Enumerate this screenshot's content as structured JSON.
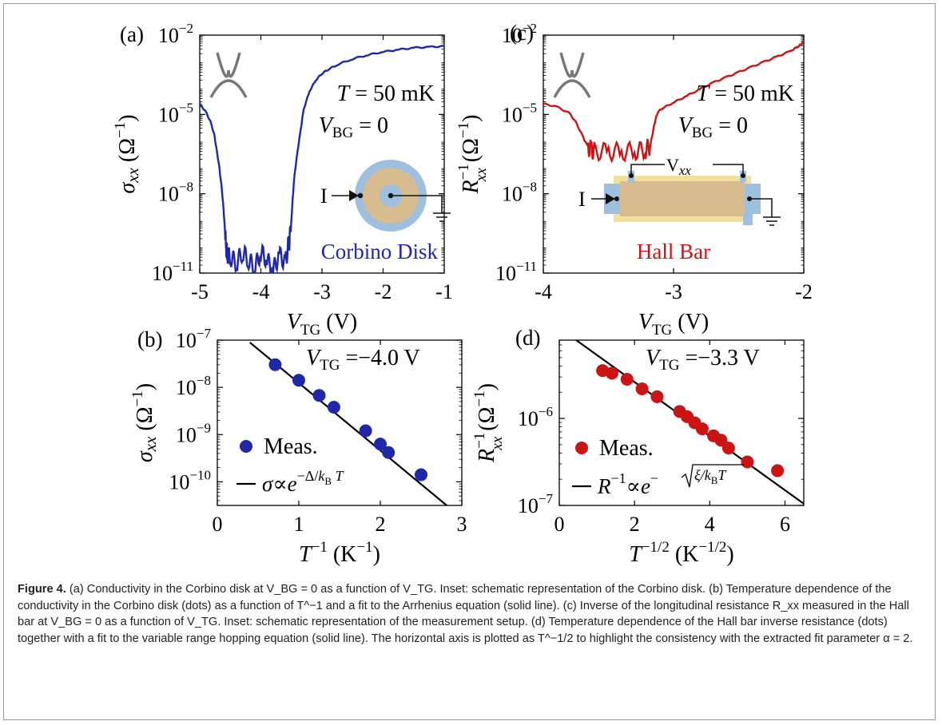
{
  "chart_data": [
    {
      "panel": "(a)",
      "type": "line",
      "xlabel": "V_TG (V)",
      "ylabel": "σ_xx (Ω^-1)",
      "xlim": [
        -5,
        -1
      ],
      "ylim_log10": [
        -11,
        -2
      ],
      "y_scale": "log",
      "xticks": [
        "-5",
        "-4",
        "-3",
        "-2",
        "-1"
      ],
      "yticks": [
        "10^-11",
        "10^-8",
        "10^-5",
        "10^-2"
      ],
      "color": "#1f28a8",
      "annotations": [
        "T = 50 mK",
        "V_BG = 0"
      ],
      "inset_label": "Corbino Disk",
      "inset_current": "I",
      "series": [
        {
          "x": [
            -5.0,
            -4.9,
            -4.82,
            -4.76,
            -4.72,
            -4.68,
            -4.64,
            -4.61,
            -4.59,
            -4.57,
            -4.55,
            -4.5,
            -4.4,
            -4.3,
            -4.2,
            -4.1,
            -4.0,
            -3.9,
            -3.8,
            -3.7,
            -3.6,
            -3.55,
            -3.52,
            -3.5,
            -3.48,
            -3.45,
            -3.4,
            -3.35,
            -3.3,
            -3.2,
            -3.1,
            -3.0,
            -2.9,
            -2.75,
            -2.5,
            -2.25,
            -2.0,
            -1.75,
            -1.5,
            -1.25,
            -1.0
          ],
          "y_log10": [
            -4.6,
            -4.9,
            -5.3,
            -5.8,
            -6.4,
            -7.0,
            -7.8,
            -8.6,
            -9.3,
            -10.0,
            -10.3,
            -10.4,
            -10.6,
            -10.2,
            -10.5,
            -10.8,
            -10.2,
            -10.5,
            -10.9,
            -10.3,
            -10.6,
            -10.0,
            -9.6,
            -9.0,
            -8.2,
            -7.3,
            -6.4,
            -5.6,
            -4.8,
            -4.1,
            -3.7,
            -3.45,
            -3.3,
            -3.12,
            -2.9,
            -2.75,
            -2.63,
            -2.55,
            -2.48,
            -2.45,
            -2.42
          ]
        }
      ]
    },
    {
      "panel": "(b)",
      "type": "scatter",
      "xlabel": "T^-1 (K^-1)",
      "ylabel": "σ_xx (Ω^-1)",
      "xlim": [
        0,
        3
      ],
      "ylim_log10": [
        -10.5,
        -7
      ],
      "y_scale": "log",
      "xticks": [
        "0",
        "1",
        "2",
        "3"
      ],
      "yticks": [
        "10^-10",
        "10^-9",
        "10^-8",
        "10^-7"
      ],
      "color": "#1f28a8",
      "annotations": [
        "V_TG = −4.0 V"
      ],
      "legend": [
        "Meas.",
        "σ∝e^(−Δ/k_B T)"
      ],
      "series": [
        {
          "name": "Meas.",
          "x": [
            0.71,
            1.0,
            1.25,
            1.43,
            1.82,
            2.0,
            2.1,
            2.5
          ],
          "y_log10": [
            -7.52,
            -7.85,
            -8.17,
            -8.42,
            -8.92,
            -9.2,
            -9.38,
            -9.85
          ]
        },
        {
          "name": "σ∝e^(−Δ/k_B T)",
          "fit": true,
          "x": [
            0.4,
            2.85
          ],
          "y_log10": [
            -7.05,
            -10.55
          ]
        }
      ]
    },
    {
      "panel": "(c)",
      "type": "line",
      "xlabel": "V_TG (V)",
      "ylabel": "R_xx^-1 (Ω^-1)",
      "xlim": [
        -4,
        -2
      ],
      "ylim_log10": [
        -11,
        -2
      ],
      "y_scale": "log",
      "xticks": [
        "-4",
        "-3",
        "-2"
      ],
      "yticks": [
        "10^-11",
        "10^-8",
        "10^-5",
        "10^-2"
      ],
      "color": "#cc1414",
      "annotations": [
        "T = 50 mK",
        "V_BG = 0"
      ],
      "inset_label": "Hall Bar",
      "inset_current": "I",
      "inset_voltage": "V_xx",
      "series": [
        {
          "x": [
            -4.0,
            -3.9,
            -3.8,
            -3.75,
            -3.7,
            -3.66,
            -3.63,
            -3.6,
            -3.5,
            -3.4,
            -3.3,
            -3.22,
            -3.18,
            -3.16,
            -3.14,
            -3.12,
            -3.08,
            -3.0,
            -2.9,
            -2.8,
            -2.7,
            -2.6,
            -2.5,
            -2.4,
            -2.3,
            -2.2,
            -2.1,
            -2.05,
            -2.02,
            -2.0
          ],
          "y_log10": [
            -4.6,
            -4.7,
            -4.95,
            -5.3,
            -5.8,
            -6.2,
            -6.35,
            -6.4,
            -6.4,
            -6.42,
            -6.38,
            -6.35,
            -6.2,
            -5.7,
            -5.2,
            -4.9,
            -4.75,
            -4.55,
            -4.3,
            -4.05,
            -3.8,
            -3.6,
            -3.4,
            -3.2,
            -3.0,
            -2.8,
            -2.6,
            -2.45,
            -2.35,
            -2.2
          ]
        }
      ]
    },
    {
      "panel": "(d)",
      "type": "scatter",
      "xlabel": "T^-1/2 (K^-1/2)",
      "ylabel": "R_xx^-1 (Ω^-1)",
      "xlim": [
        0,
        6.5
      ],
      "ylim_log10": [
        -7,
        -5.1
      ],
      "y_scale": "log",
      "xticks": [
        "0",
        "2",
        "4",
        "6"
      ],
      "yticks": [
        "10^-7",
        "10^-6"
      ],
      "color": "#cc1414",
      "annotations": [
        "V_TG = −3.3 V"
      ],
      "legend": [
        "Meas.",
        "R^-1∝e^(−√(ξ/k_B T))"
      ],
      "series": [
        {
          "name": "Meas.",
          "x": [
            1.15,
            1.4,
            1.8,
            2.2,
            2.6,
            3.2,
            3.4,
            3.6,
            3.8,
            4.1,
            4.3,
            4.5,
            5.0,
            5.8
          ],
          "y_log10": [
            -5.45,
            -5.48,
            -5.55,
            -5.66,
            -5.75,
            -5.92,
            -5.98,
            -6.05,
            -6.12,
            -6.2,
            -6.25,
            -6.34,
            -6.5,
            -6.6
          ]
        },
        {
          "name": "R^-1∝e^(−√(ξ/k_B T))",
          "fit": true,
          "x": [
            0.45,
            6.5
          ],
          "y_log10": [
            -5.1,
            -6.98
          ]
        }
      ]
    }
  ],
  "caption": {
    "label": "Figure 4.",
    "text": " (a) Conductivity in the Corbino disk at V_BG = 0 as a function of V_TG. Inset: schematic representation of the Corbino disk. (b) Temperature dependence of the conductivity in the Corbino disk (dots) as a function of T^−1 and a fit to the Arrhenius equation (solid line). (c) Inverse of the longitudinal resistance R_xx measured in the Hall bar at V_BG = 0 as a function of V_TG. Inset: schematic representation of the measurement setup. (d) Temperature dependence of the Hall bar inverse resistance (dots) together with a fit to the variable range hopping equation (solid line). The horizontal axis is plotted as T^−1/2 to highlight the consistency with the extracted fit parameter α = 2."
  }
}
